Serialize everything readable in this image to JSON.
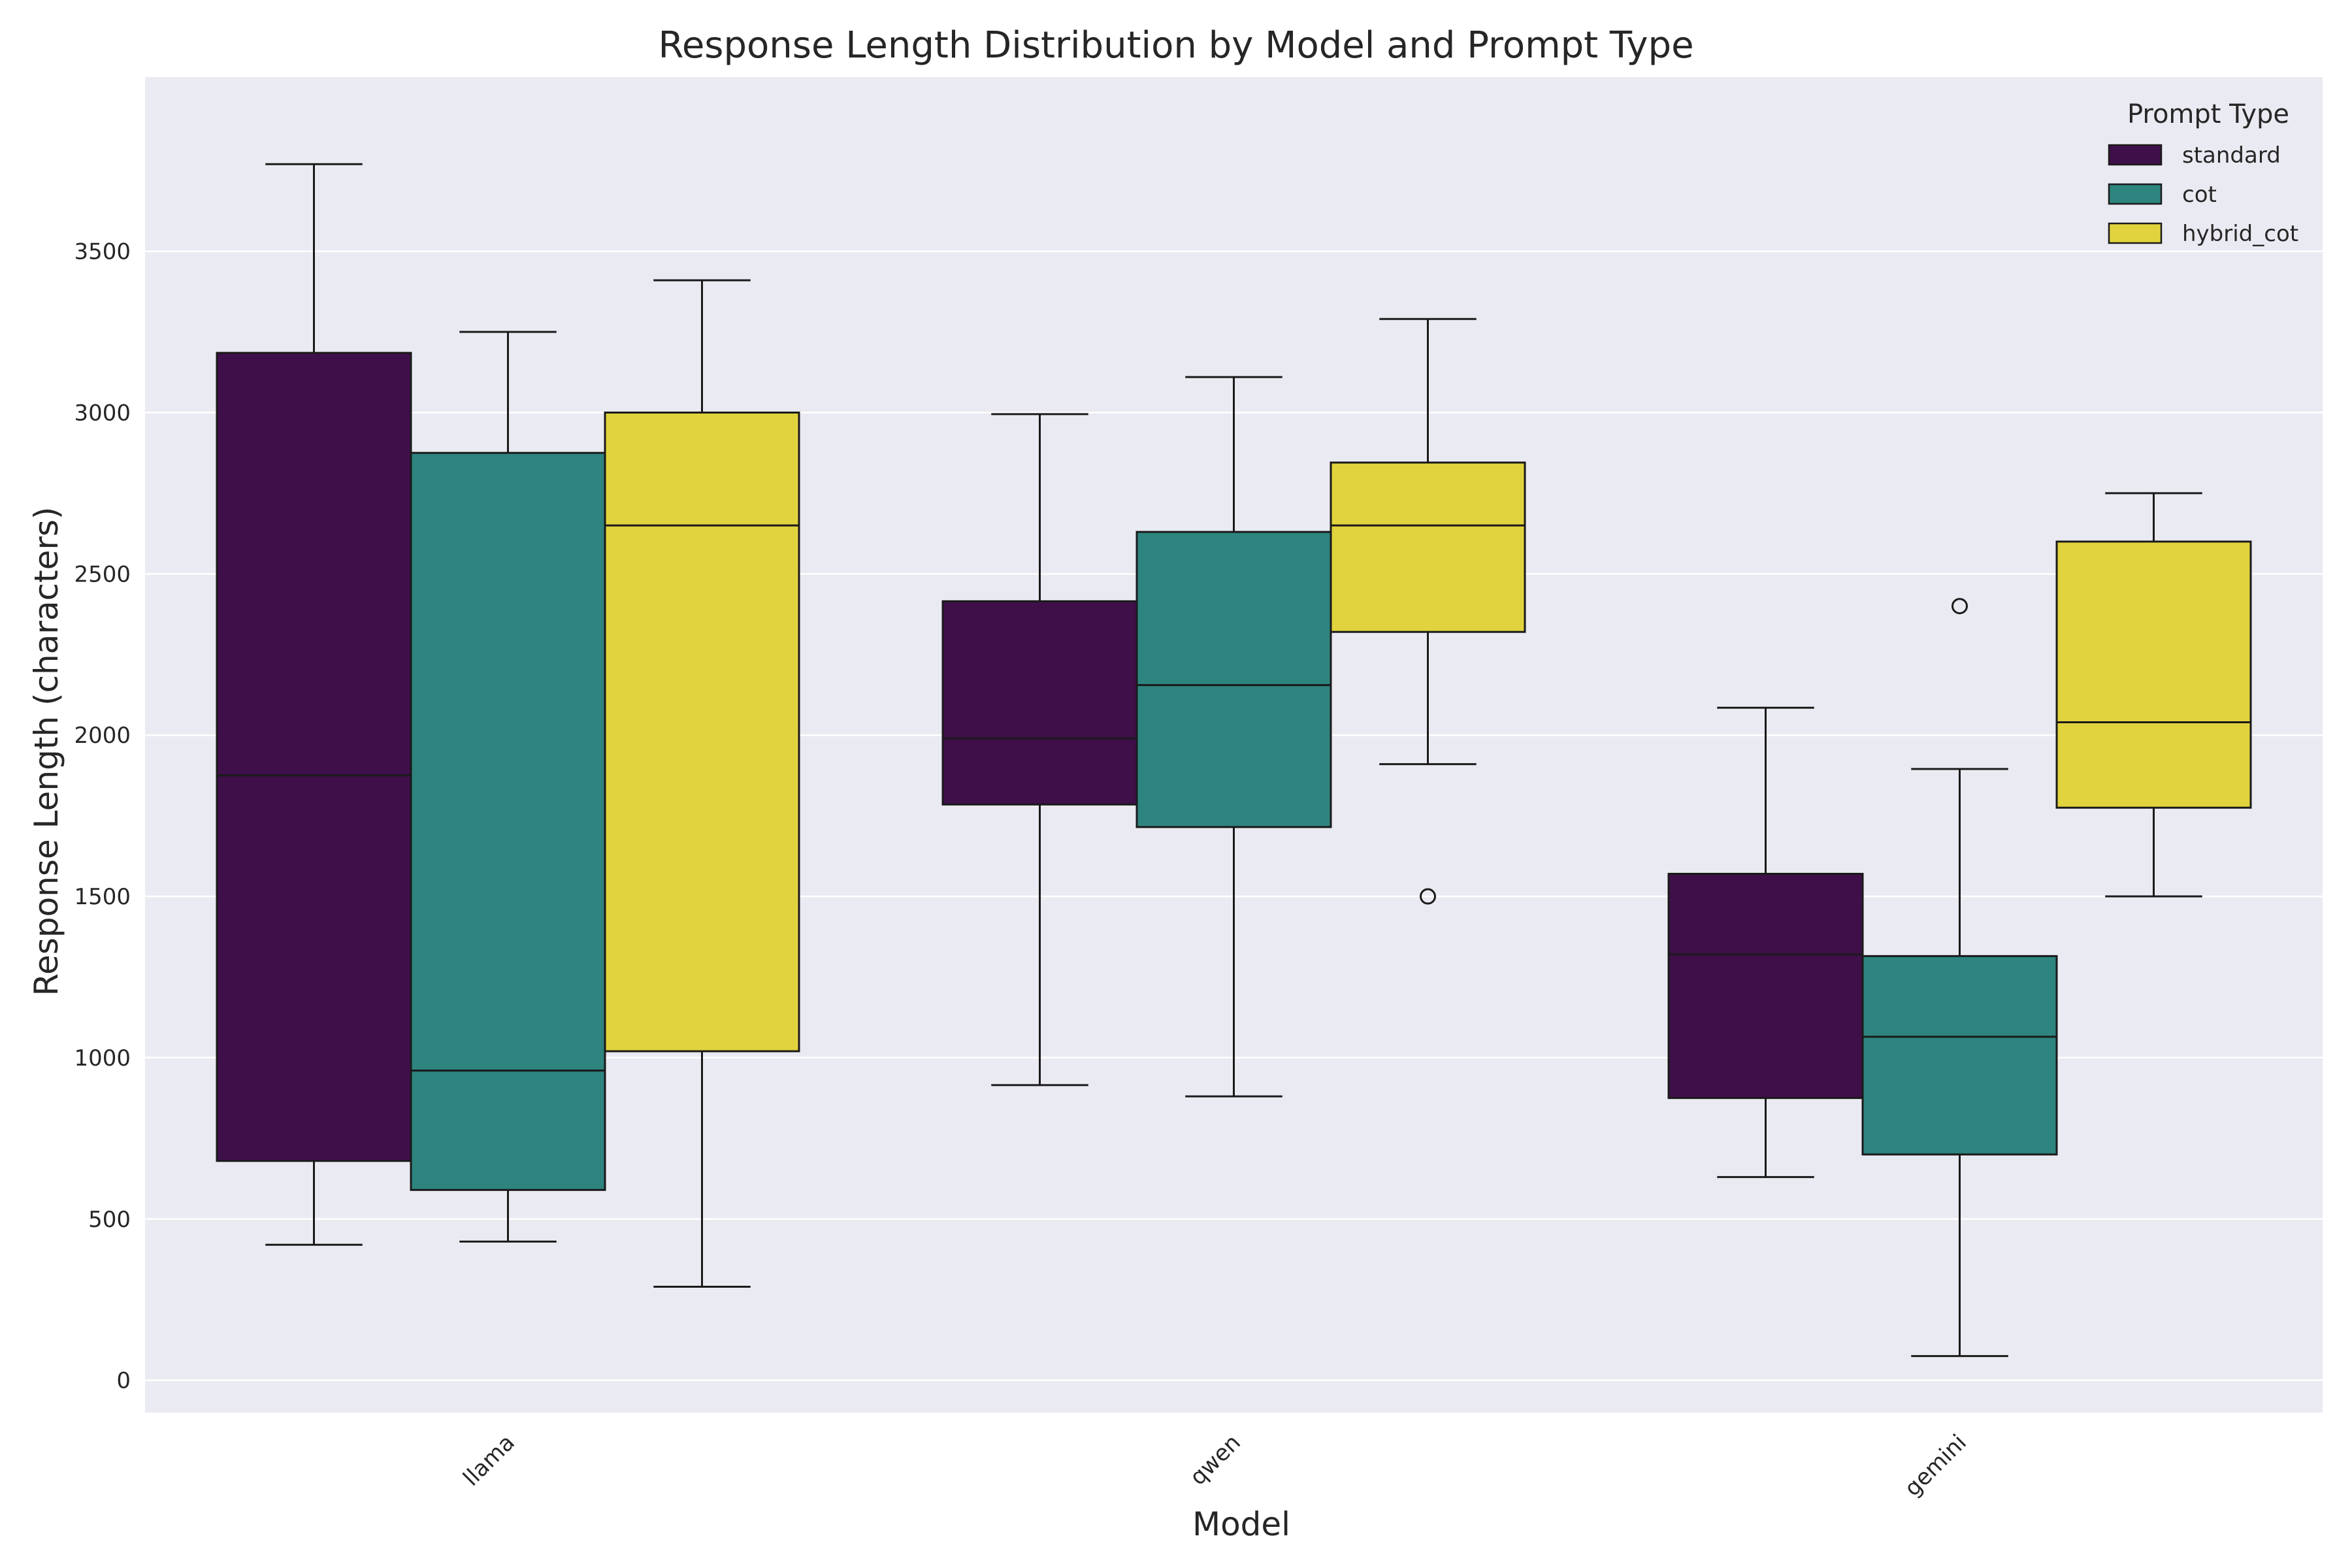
{
  "chart_data": {
    "type": "box",
    "title": "Response Length Distribution by Model and Prompt Type",
    "xlabel": "Model",
    "ylabel": "Response Length (characters)",
    "ylim": [
      -100,
      4040
    ],
    "yticks": [
      0,
      500,
      1000,
      1500,
      2000,
      2500,
      3000,
      3500
    ],
    "grid": true,
    "legend": {
      "title": "Prompt Type",
      "placement": "top-right"
    },
    "categories": [
      "llama",
      "qwen",
      "gemini"
    ],
    "series": [
      {
        "name": "standard",
        "color": "#3f0f4a",
        "boxes": [
          {
            "whisker_low": 420,
            "q1": 680,
            "median": 1875,
            "q3": 3185,
            "whisker_high": 3770,
            "outliers": []
          },
          {
            "whisker_low": 915,
            "q1": 1785,
            "median": 1990,
            "q3": 2415,
            "whisker_high": 2995,
            "outliers": []
          },
          {
            "whisker_low": 630,
            "q1": 875,
            "median": 1320,
            "q3": 1570,
            "whisker_high": 2085,
            "outliers": []
          }
        ]
      },
      {
        "name": "cot",
        "color": "#2e847f",
        "boxes": [
          {
            "whisker_low": 430,
            "q1": 590,
            "median": 960,
            "q3": 2875,
            "whisker_high": 3250,
            "outliers": []
          },
          {
            "whisker_low": 880,
            "q1": 1715,
            "median": 2155,
            "q3": 2630,
            "whisker_high": 3110,
            "outliers": []
          },
          {
            "whisker_low": 75,
            "q1": 700,
            "median": 1065,
            "q3": 1315,
            "whisker_high": 1895,
            "outliers": [
              2400
            ]
          }
        ]
      },
      {
        "name": "hybrid_cot",
        "color": "#e1d33e",
        "boxes": [
          {
            "whisker_low": 290,
            "q1": 1020,
            "median": 2650,
            "q3": 3000,
            "whisker_high": 3410,
            "outliers": []
          },
          {
            "whisker_low": 1910,
            "q1": 2320,
            "median": 2650,
            "q3": 2845,
            "whisker_high": 3290,
            "outliers": [
              1500
            ]
          },
          {
            "whisker_low": 1500,
            "q1": 1775,
            "median": 2040,
            "q3": 2600,
            "whisker_high": 2750,
            "outliers": []
          }
        ]
      }
    ]
  }
}
